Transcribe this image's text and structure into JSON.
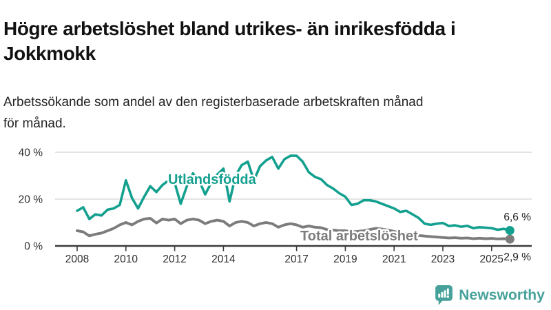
{
  "header": {
    "title": "Högre arbetslöshet bland utrikes- än inrikesfödda i Jokkmokk",
    "title_lines": [
      "Högre arbetslöshet bland utrikes- än inrikesfödda i",
      "Jokkmokk"
    ],
    "subtitle": "Arbetssökande som andel av den registerbaserade arbetskraften månad för månad.",
    "subtitle_lines": [
      "Arbetssökande som andel av den registerbaserade arbetskraften månad",
      "för månad."
    ]
  },
  "colors": {
    "accent_teal": "#14a08f",
    "line_gray": "#7c7c7c",
    "axis": "#3b3b3b",
    "grid": "#d2d2d2",
    "text_dark": "#1c1c1c",
    "logo_teal": "#46a19a"
  },
  "icons": {
    "logo": "bar-chart-speech-bubble-icon"
  },
  "footer": {
    "brand": "Newsworthy"
  },
  "chart_data": {
    "type": "line",
    "title": "Högre arbetslöshet bland utrikes- än inrikesfödda i Jokkmokk",
    "subtitle": "Arbetssökande som andel av den registerbaserade arbetskraften månad för månad.",
    "xlabel": "",
    "ylabel": "",
    "y_unit": "%",
    "ylim": [
      0,
      42
    ],
    "xlim": [
      2007.1,
      2026.6
    ],
    "grid": "horizontal",
    "legend": "inline-labels",
    "x": [
      2008.0,
      2008.25,
      2008.5,
      2008.75,
      2009.0,
      2009.25,
      2009.5,
      2009.75,
      2010.0,
      2010.25,
      2010.5,
      2010.75,
      2011.0,
      2011.25,
      2011.5,
      2011.75,
      2012.0,
      2012.25,
      2012.5,
      2012.75,
      2013.0,
      2013.25,
      2013.5,
      2013.75,
      2014.0,
      2014.25,
      2014.5,
      2014.75,
      2015.0,
      2015.25,
      2015.5,
      2015.75,
      2016.0,
      2016.25,
      2016.5,
      2016.75,
      2017.0,
      2017.25,
      2017.5,
      2017.75,
      2018.0,
      2018.25,
      2018.5,
      2018.75,
      2019.0,
      2019.25,
      2019.5,
      2019.75,
      2020.0,
      2020.25,
      2020.5,
      2020.75,
      2021.0,
      2021.25,
      2021.5,
      2021.75,
      2022.0,
      2022.25,
      2022.5,
      2022.75,
      2023.0,
      2023.25,
      2023.5,
      2023.75,
      2024.0,
      2024.25,
      2024.5,
      2024.75,
      2025.0,
      2025.25,
      2025.5,
      2025.75
    ],
    "series": [
      {
        "name": "Utlandsfödda",
        "color": "#14a08f",
        "end_value": 6.6,
        "end_label": "6,6 %",
        "values": [
          15.0,
          16.5,
          11.5,
          13.5,
          13.0,
          15.5,
          16.0,
          17.5,
          28.0,
          20.5,
          16.0,
          21.0,
          25.5,
          23.0,
          26.0,
          28.0,
          27.0,
          18.0,
          25.5,
          31.0,
          28.0,
          22.0,
          27.0,
          30.5,
          33.0,
          19.0,
          30.0,
          34.5,
          36.0,
          28.0,
          34.0,
          36.5,
          38.0,
          33.0,
          37.0,
          38.5,
          38.5,
          36.0,
          31.5,
          29.5,
          28.5,
          26.0,
          24.5,
          22.5,
          21.0,
          17.5,
          18.0,
          19.5,
          19.5,
          19.0,
          18.0,
          17.0,
          16.0,
          14.5,
          15.0,
          13.5,
          12.0,
          9.5,
          9.0,
          9.5,
          9.8,
          8.5,
          8.8,
          8.2,
          8.6,
          7.6,
          8.0,
          7.8,
          7.6,
          6.9,
          7.3,
          6.6
        ]
      },
      {
        "name": "Total arbetslöshet",
        "color": "#7c7c7c",
        "end_value": 2.9,
        "end_label": "2,9 %",
        "values": [
          6.5,
          6.0,
          4.3,
          5.0,
          5.5,
          6.5,
          7.5,
          9.0,
          10.0,
          9.0,
          10.5,
          11.5,
          11.8,
          9.8,
          11.5,
          11.0,
          11.5,
          9.5,
          11.0,
          11.5,
          11.0,
          9.5,
          10.5,
          11.0,
          10.5,
          8.5,
          10.0,
          10.5,
          10.0,
          8.5,
          9.5,
          10.0,
          9.5,
          8.0,
          9.0,
          9.5,
          9.0,
          8.0,
          8.5,
          8.0,
          7.8,
          7.0,
          6.8,
          6.5,
          6.5,
          6.0,
          6.2,
          6.5,
          7.0,
          7.5,
          7.2,
          6.8,
          6.2,
          5.5,
          5.2,
          4.8,
          4.5,
          4.2,
          4.0,
          3.8,
          3.6,
          3.4,
          3.5,
          3.3,
          3.4,
          3.1,
          3.3,
          3.1,
          3.2,
          3.0,
          3.1,
          2.9
        ]
      }
    ],
    "yticks": [
      {
        "value": 0,
        "label": "0 %"
      },
      {
        "value": 20,
        "label": "20 %"
      },
      {
        "value": 40,
        "label": "40 %"
      }
    ],
    "xticks": [
      {
        "value": 2008,
        "label": "2008"
      },
      {
        "value": 2010,
        "label": "2010"
      },
      {
        "value": 2012,
        "label": "2012"
      },
      {
        "value": 2014,
        "label": "2014"
      },
      {
        "value": 2017,
        "label": "2017"
      },
      {
        "value": 2019,
        "label": "2019"
      },
      {
        "value": 2021,
        "label": "2021"
      },
      {
        "value": 2023,
        "label": "2023"
      },
      {
        "value": 2025,
        "label": "2025"
      }
    ]
  }
}
